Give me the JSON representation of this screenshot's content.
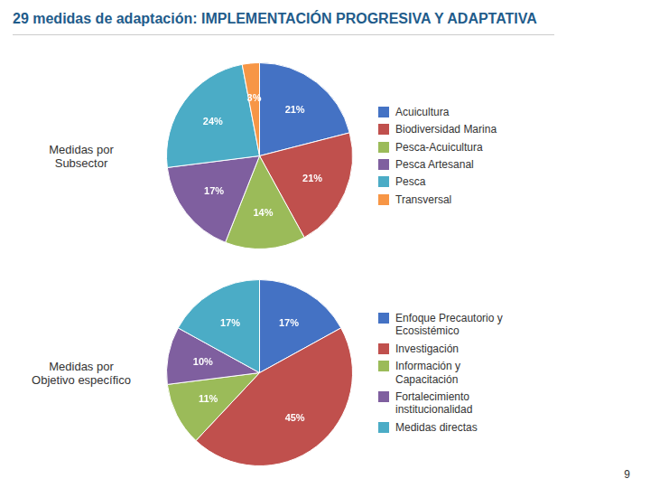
{
  "title": "29 medidas de adaptación: IMPLEMENTACIÓN PROGRESIVA Y ADAPTATIVA",
  "annotations": [
    "9"
  ],
  "chart_data": [
    {
      "type": "pie",
      "title": "Medidas por\nSubsector",
      "categories": [
        "Acuicultura",
        "Biodiversidad Marina",
        "Pesca-Acuicultura",
        "Pesca Artesanal",
        "Pesca",
        "Transversal"
      ],
      "values": [
        21,
        21,
        14,
        17,
        24,
        3
      ],
      "value_labels": [
        "21%",
        "21%",
        "14%",
        "17%",
        "24%",
        "3%"
      ],
      "colors": [
        "#4472C4",
        "#C0504D",
        "#9BBB59",
        "#7F5F9F",
        "#4BACC6",
        "#F79646"
      ],
      "data_labels": true,
      "legend": "right"
    },
    {
      "type": "pie",
      "title": "Medidas por\nObjetivo específico",
      "categories": [
        "Enfoque Precautorio y\nEcosistémico",
        "Investigación",
        "Información y\nCapacitación",
        "Fortalecimiento\ninstitucionalidad",
        "Medidas directas"
      ],
      "values": [
        17,
        45,
        11,
        10,
        17
      ],
      "value_labels": [
        "17%",
        "45%",
        "11%",
        "10%",
        "17%"
      ],
      "colors": [
        "#4472C4",
        "#C0504D",
        "#9BBB59",
        "#7F5F9F",
        "#4BACC6"
      ],
      "data_labels": true,
      "legend": "right"
    }
  ]
}
